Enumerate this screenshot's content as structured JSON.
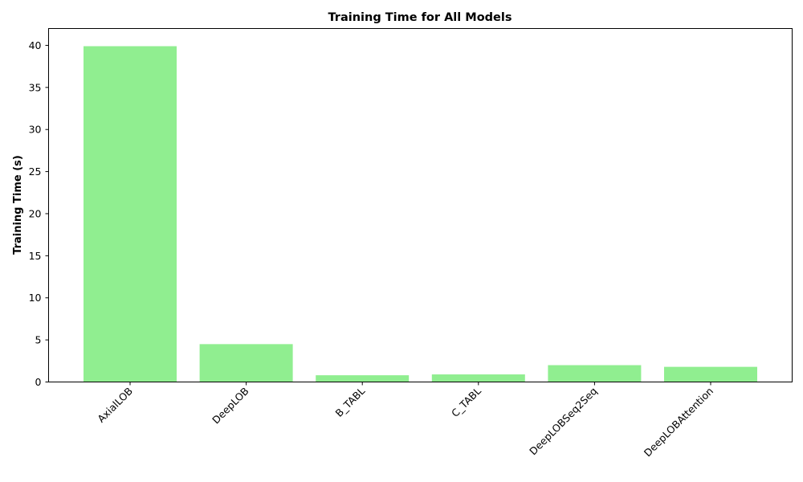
{
  "chart_data": {
    "type": "bar",
    "title": "Training Time for All Models",
    "xlabel": "",
    "ylabel": "Training Time (s)",
    "categories": [
      "AxialLOB",
      "DeepLOB",
      "B_TABL",
      "C_TABL",
      "DeepLOBSeq2Seq",
      "DeepLOBAttention"
    ],
    "values": [
      39.9,
      4.5,
      0.8,
      0.9,
      2.0,
      1.8
    ],
    "ylim": [
      0,
      42
    ],
    "yticks": [
      0,
      5,
      10,
      15,
      20,
      25,
      30,
      35,
      40
    ],
    "grid": false,
    "bar_color": "#90ee90"
  }
}
